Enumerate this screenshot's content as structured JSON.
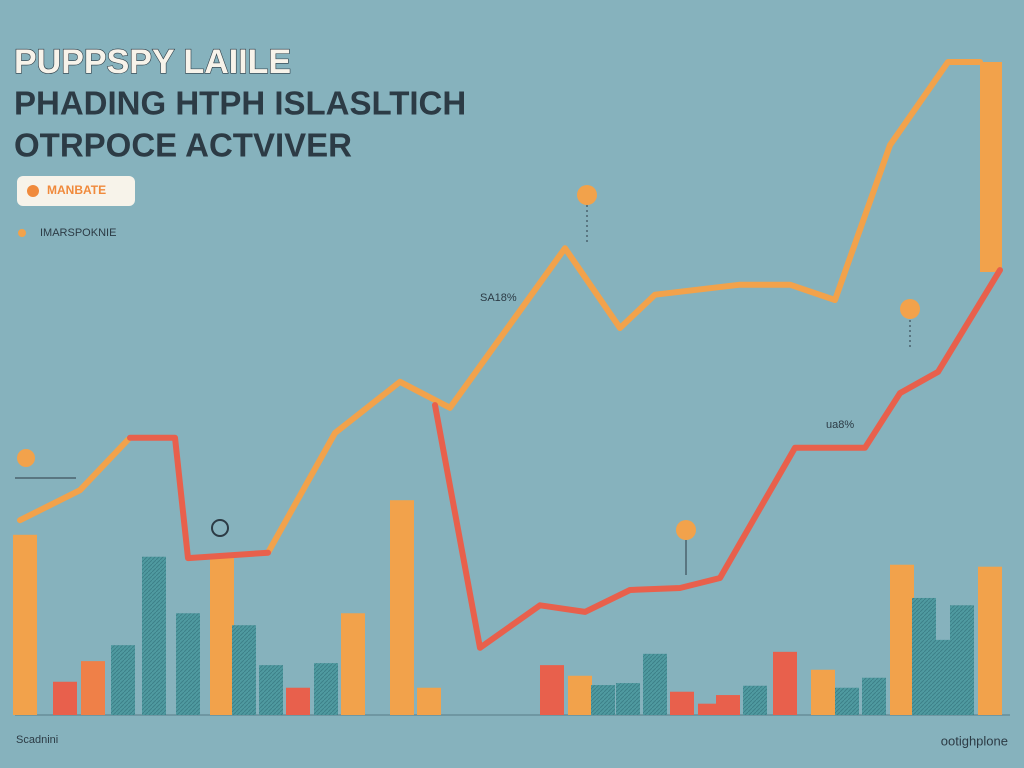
{
  "chart_data": {
    "type": "line",
    "title_lines": [
      "PUPPSPY LAIILE",
      "PHADING HTPH ISLASLTICH",
      "OTRPOCE ACTVIVER"
    ],
    "badge": "MANBATE",
    "legend_label": "IMARSPOKNIE",
    "annotations": [
      "SA18%",
      "ua8%"
    ],
    "source": "Scadnini",
    "credit": "ootighplone",
    "xlim": [
      0,
      102.4
    ],
    "ylim": [
      0,
      100
    ],
    "series": [
      {
        "color": "#f2a24b",
        "x": [
          2,
          8,
          12.8,
          null,
          26.8,
          33.5,
          40,
          45,
          56.5,
          62,
          65.5,
          74,
          79,
          83.5,
          89,
          94.8,
          98
        ],
        "values": [
          29.3,
          33.8,
          41.4,
          null,
          24.4,
          42.4,
          50.1,
          46.2,
          70.2,
          58.2,
          63.2,
          64.7,
          64.7,
          62.4,
          85.7,
          98.2,
          98.2
        ]
      },
      {
        "color": "#e8604c",
        "x": [
          13,
          17.5,
          18.8,
          26.8,
          null,
          43.5,
          48,
          54,
          58.5,
          63,
          68,
          72,
          79.5,
          86.5,
          90,
          93.8,
          100
        ],
        "values": [
          41.7,
          41.7,
          23.6,
          24.4,
          null,
          46.6,
          10.1,
          16.5,
          15.5,
          18.8,
          19.1,
          20.6,
          40.2,
          40.2,
          48.4,
          51.6,
          66.9
        ]
      }
    ],
    "bars": {
      "x": [
        2.5,
        6.5,
        9.3,
        12.3,
        15.4,
        18.8,
        22.2,
        24.4,
        27.1,
        29.8,
        32.6,
        35.3,
        40.2,
        42.9,
        55.2,
        58,
        60.3,
        62.8,
        65.5,
        68.2,
        71,
        72.8,
        75.5,
        78.5,
        82.3,
        84.7,
        87.4,
        90.2,
        92.4,
        94.5,
        96.2,
        99
      ],
      "values": [
        27.1,
        5,
        8.1,
        10.5,
        23.8,
        15.3,
        23.6,
        13.5,
        7.5,
        4.1,
        7.8,
        15.3,
        32.3,
        4.1,
        7.5,
        5.9,
        4.5,
        4.8,
        9.2,
        3.5,
        1.7,
        3,
        4.4,
        9.5,
        6.8,
        4.1,
        5.6,
        22.6,
        17.6,
        11.3,
        16.5,
        22.3
      ],
      "colors": [
        "#f2a24b",
        "#e8604c",
        "#ef8048",
        "#4f9aa0",
        "#4f9aa0",
        "#4f9aa0",
        "#f2a24b",
        "#4f9aa0",
        "#4f9aa0",
        "#e8604c",
        "#4f9aa0",
        "#f2a24b",
        "#f2a24b",
        "#f2a24b",
        "#e8604c",
        "#f2a24b",
        "#4f9aa0",
        "#4f9aa0",
        "#4f9aa0",
        "#e8604c",
        "#e8604c",
        "#e8604c",
        "#4f9aa0",
        "#e8604c",
        "#f2a24b",
        "#4f9aa0",
        "#4f9aa0",
        "#f2a24b",
        "#4f9aa0",
        "#4f9aa0",
        "#4f9aa0",
        "#f2a24b"
      ]
    }
  }
}
